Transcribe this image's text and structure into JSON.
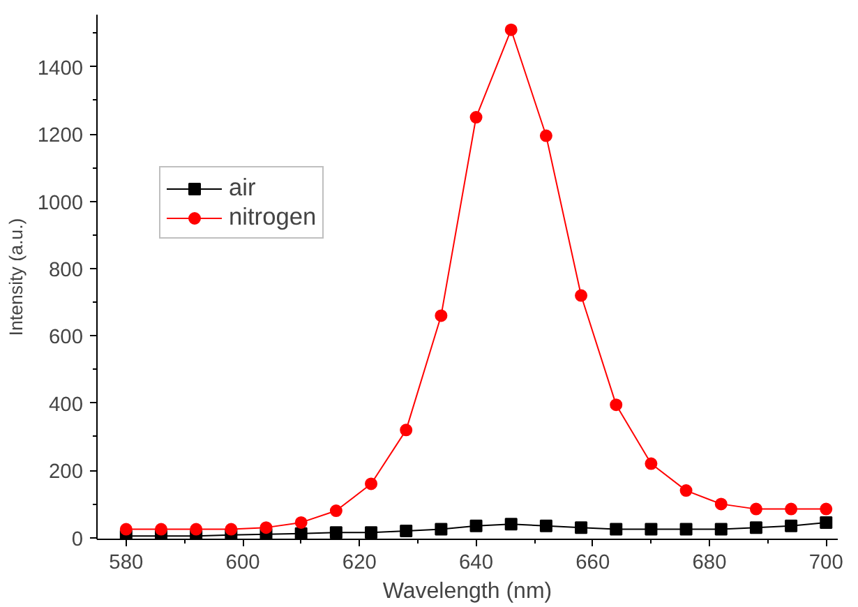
{
  "chart_data": {
    "type": "line",
    "xlabel": "Wavelength (nm)",
    "ylabel": "Intensity (a.u.)",
    "x": [
      580,
      586,
      592,
      598,
      604,
      610,
      616,
      622,
      628,
      634,
      640,
      646,
      652,
      658,
      664,
      670,
      676,
      682,
      688,
      694,
      700
    ],
    "series": [
      {
        "name": "air",
        "color": "#000000",
        "marker": "square",
        "values": [
          5,
          5,
          5,
          8,
          10,
          12,
          15,
          15,
          20,
          25,
          35,
          40,
          35,
          30,
          25,
          25,
          25,
          25,
          30,
          35,
          45
        ]
      },
      {
        "name": "nitrogen",
        "color": "#ff0000",
        "marker": "circle",
        "values": [
          25,
          25,
          25,
          25,
          30,
          45,
          80,
          160,
          320,
          660,
          1250,
          1510,
          1195,
          720,
          395,
          220,
          140,
          100,
          85,
          85,
          85
        ]
      }
    ],
    "xlim": [
      575,
      702
    ],
    "ylim": [
      -5,
      1555
    ],
    "xticks": [
      580,
      600,
      620,
      640,
      660,
      680,
      700
    ],
    "yticks": [
      0,
      200,
      400,
      600,
      800,
      1000,
      1200,
      1400
    ],
    "grid": false,
    "legend": "top left",
    "line_style": "solid"
  }
}
